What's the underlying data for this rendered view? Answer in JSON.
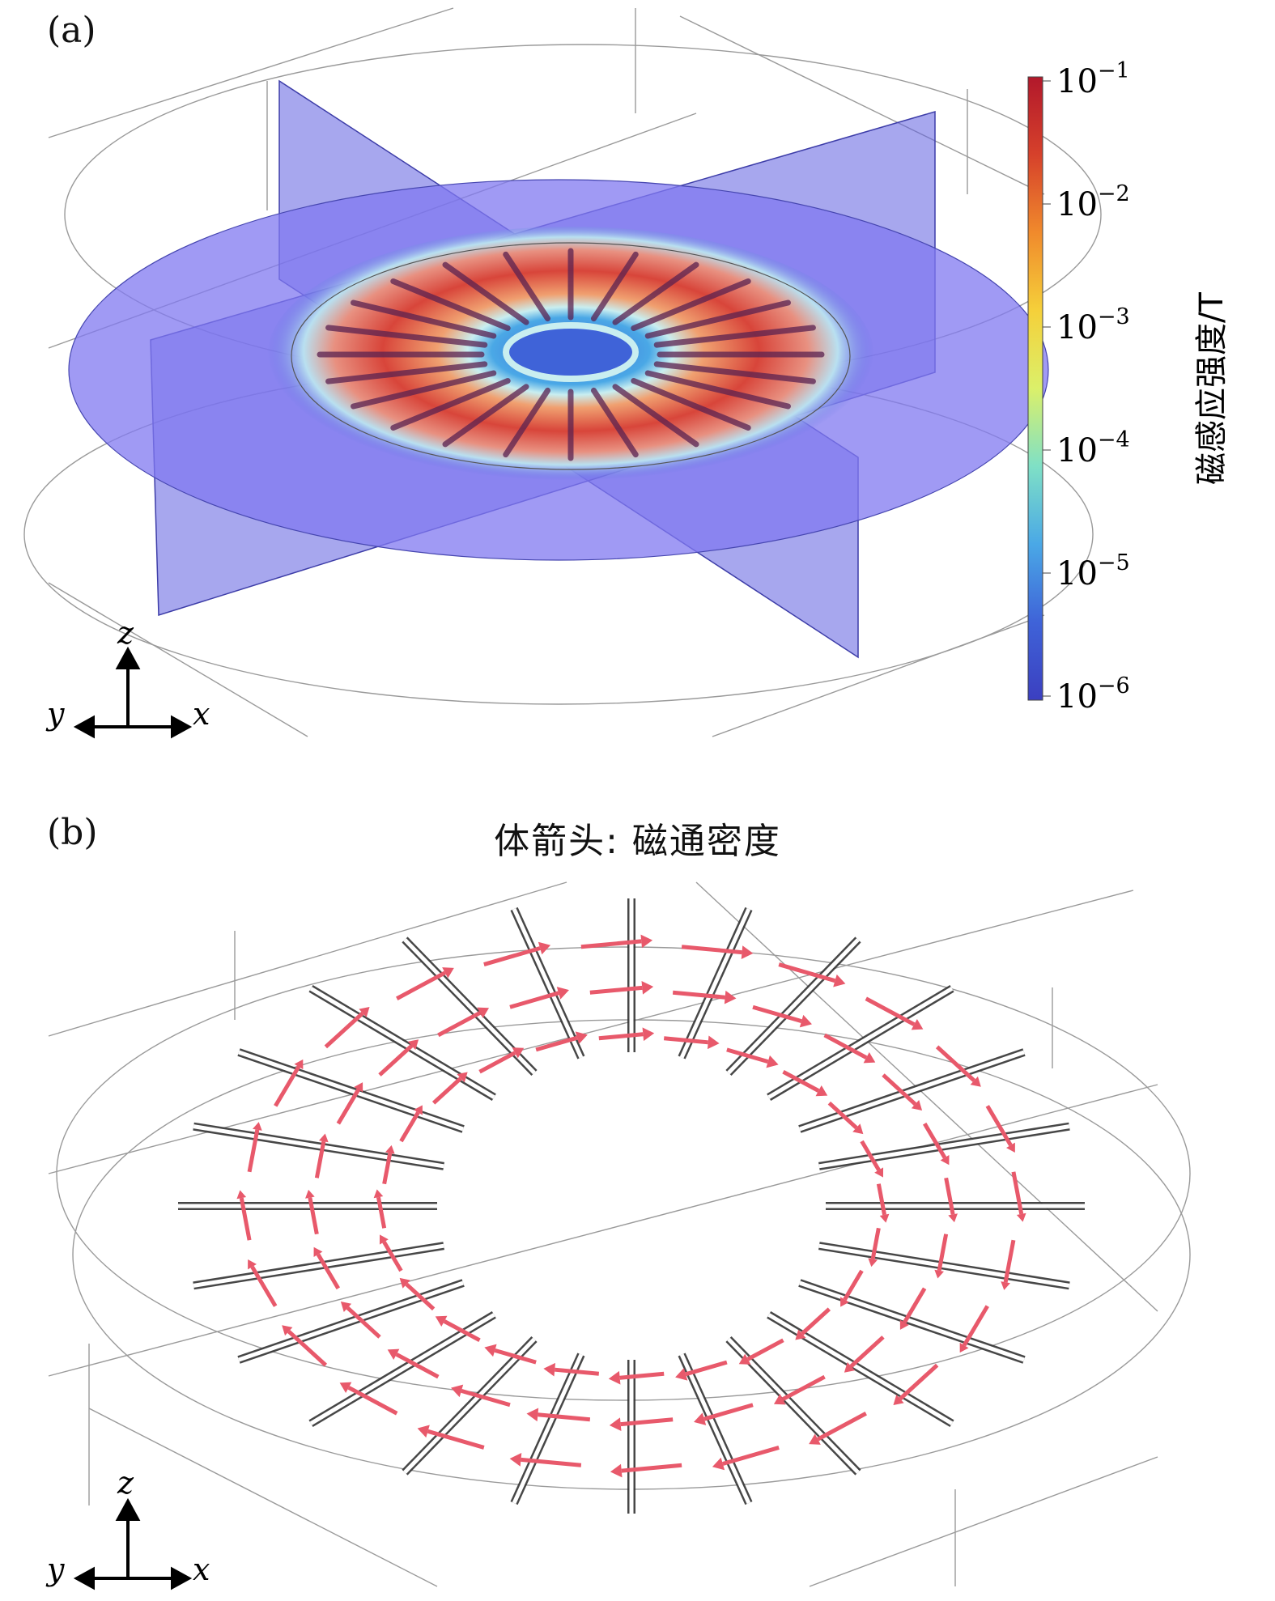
{
  "panel_a": {
    "label": "(a)",
    "colorbar": {
      "title": "磁感应强度/T",
      "ticks": [
        {
          "base": "10",
          "exp": "−1"
        },
        {
          "base": "10",
          "exp": "−2"
        },
        {
          "base": "10",
          "exp": "−3"
        },
        {
          "base": "10",
          "exp": "−4"
        },
        {
          "base": "10",
          "exp": "−5"
        },
        {
          "base": "10",
          "exp": "−6"
        }
      ],
      "colors": [
        "#b2182b",
        "#d6412b",
        "#f08a2c",
        "#f5d03a",
        "#dbf06a",
        "#7fe0c6",
        "#4aa8e6",
        "#3f63d8",
        "#3b3fc0"
      ]
    },
    "axes": {
      "z": "z",
      "y": "y",
      "x": "x"
    },
    "rod_count": 24
  },
  "panel_b": {
    "label": "(b)",
    "title": "体箭头:  磁通密度",
    "axes": {
      "z": "z",
      "y": "y",
      "x": "x"
    },
    "rod_count": 24,
    "arrow_color": "#e8596b"
  }
}
